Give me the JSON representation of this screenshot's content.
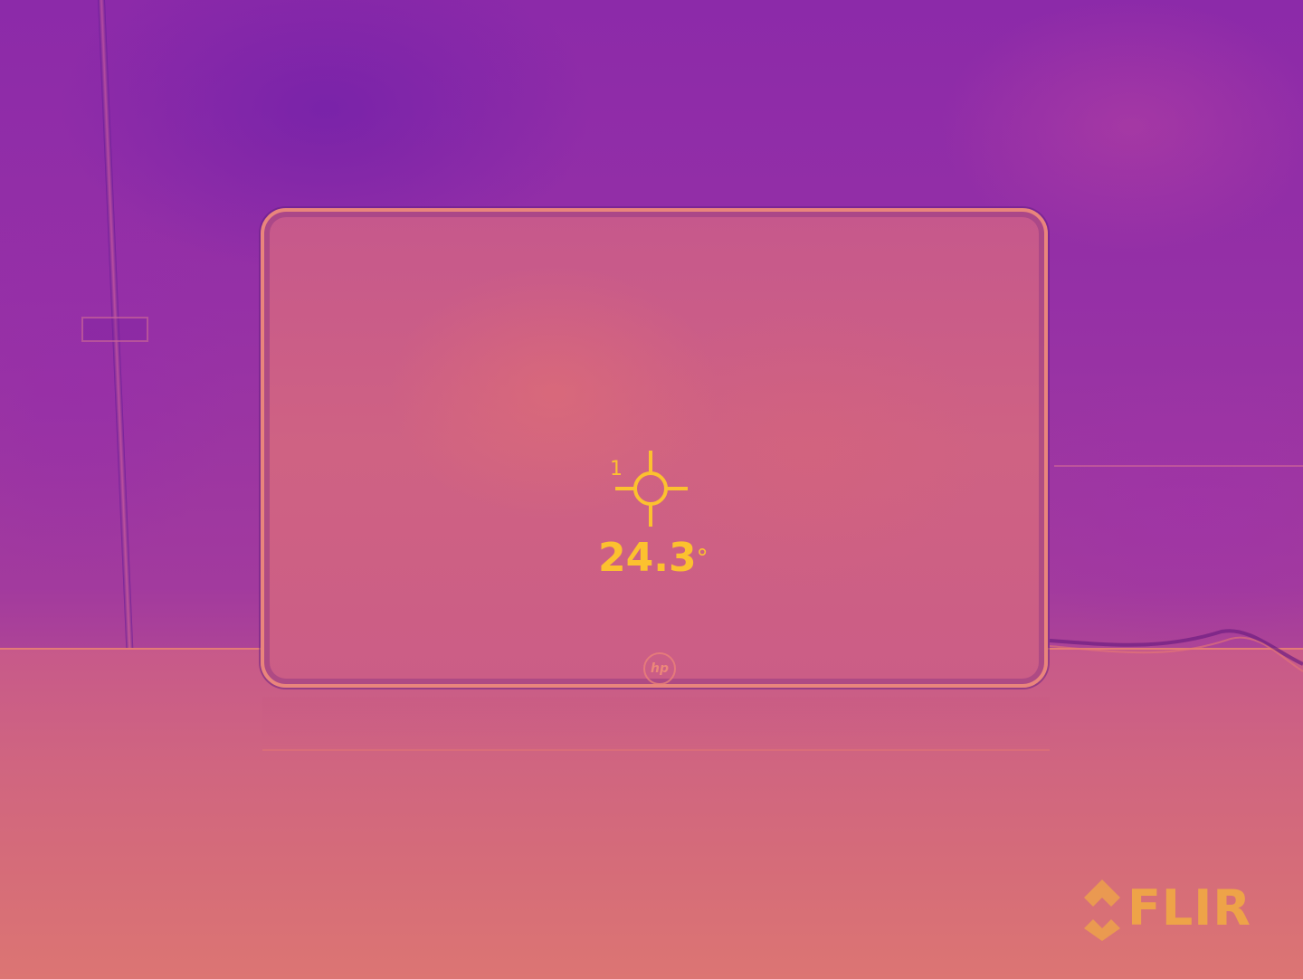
{
  "measurement": {
    "spot_id": "1",
    "temperature": "24.3",
    "unit_symbol": "°"
  },
  "brand": {
    "watermark": "FLIR",
    "device_logo": "hp"
  },
  "colors": {
    "overlay_yellow": "#fcc12f",
    "palette_cool": "#8c2aa9",
    "palette_warm": "#dc7573"
  },
  "icons": {
    "reticle": "crosshair-icon",
    "flir_mark": "flir-logo-icon"
  }
}
